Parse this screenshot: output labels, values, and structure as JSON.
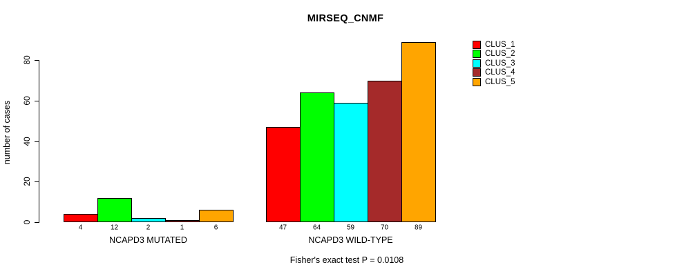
{
  "title": "MIRSEQ_CNMF",
  "ylabel": "number of cases",
  "footer_note": "Fisher's exact test P = 0.0108",
  "legend": {
    "position": "right",
    "items": [
      {
        "label": "CLUS_1",
        "color": "#FF0000"
      },
      {
        "label": "CLUS_2",
        "color": "#00FF00"
      },
      {
        "label": "CLUS_3",
        "color": "#00FFFF"
      },
      {
        "label": "CLUS_4",
        "color": "#A52A2A"
      },
      {
        "label": "CLUS_5",
        "color": "#FFA500"
      }
    ]
  },
  "chart_data": {
    "type": "bar",
    "title": "MIRSEQ_CNMF",
    "xlabel": "",
    "ylabel": "number of cases",
    "categories": [
      "NCAPD3 MUTATED",
      "NCAPD3 WILD-TYPE"
    ],
    "series": [
      {
        "name": "CLUS_1",
        "color": "#FF0000",
        "values": [
          4,
          47
        ]
      },
      {
        "name": "CLUS_2",
        "color": "#00FF00",
        "values": [
          12,
          64
        ]
      },
      {
        "name": "CLUS_3",
        "color": "#00FFFF",
        "values": [
          2,
          59
        ]
      },
      {
        "name": "CLUS_4",
        "color": "#A52A2A",
        "values": [
          1,
          70
        ]
      },
      {
        "name": "CLUS_5",
        "color": "#FFA500",
        "values": [
          6,
          89
        ]
      }
    ],
    "bar_value_labels": true,
    "yticks": [
      0,
      20,
      40,
      60,
      80
    ],
    "ylim": [
      0,
      89
    ],
    "grid": false,
    "legend_position": "right",
    "annotation": "Fisher's exact test P = 0.0108"
  }
}
